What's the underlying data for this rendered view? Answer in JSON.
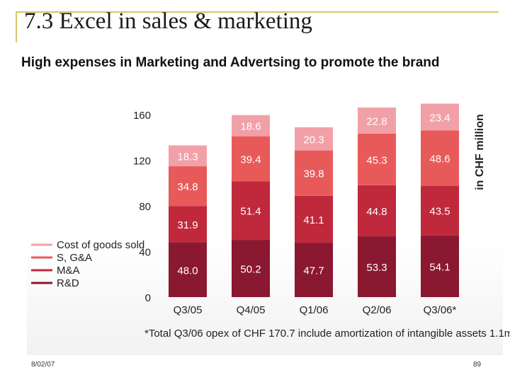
{
  "slide": {
    "title": "7.3 Excel in sales & marketing",
    "subtitle": "High expenses in Marketing and Advertsing to promote the brand",
    "date": "8/02/07",
    "page_number": "89"
  },
  "chart_data": {
    "type": "bar",
    "stacked": true,
    "categories": [
      "Q3/05",
      "Q4/05",
      "Q1/06",
      "Q2/06",
      "Q3/06*"
    ],
    "series": [
      {
        "name": "R&D",
        "color": "#8a1830",
        "values": [
          48.0,
          50.2,
          47.7,
          53.3,
          54.1
        ],
        "labels": [
          "48.0",
          "50.2",
          "47.7",
          "53.3",
          "54.1"
        ]
      },
      {
        "name": "M&A",
        "color": "#c0283c",
        "values": [
          31.9,
          51.4,
          41.1,
          44.8,
          43.5
        ],
        "labels": [
          "31.9",
          "51.4",
          "41.1",
          "44.8",
          "43.5"
        ]
      },
      {
        "name": "S, G&A",
        "color": "#e85a5a",
        "values": [
          34.8,
          39.4,
          39.8,
          45.3,
          48.6
        ],
        "labels": [
          "34.8",
          "39.4",
          "39.8",
          "45.3",
          "48.6"
        ]
      },
      {
        "name": "Cost of goods sold",
        "color": "#f2a0a8",
        "values": [
          18.3,
          18.6,
          20.3,
          22.8,
          23.4
        ],
        "labels": [
          "18.3",
          "18.6",
          "20.3",
          "22.8",
          "23.4"
        ]
      }
    ],
    "ylim": [
      0,
      160
    ],
    "yticks": [
      0,
      40,
      80,
      120,
      160
    ],
    "ylabel": "in CHF million",
    "xlabel": "",
    "legend_position": "left",
    "footnote": "*Total Q3/06 opex of CHF 170.7 include amortization of intangible assets 1.1m",
    "grid": false
  }
}
